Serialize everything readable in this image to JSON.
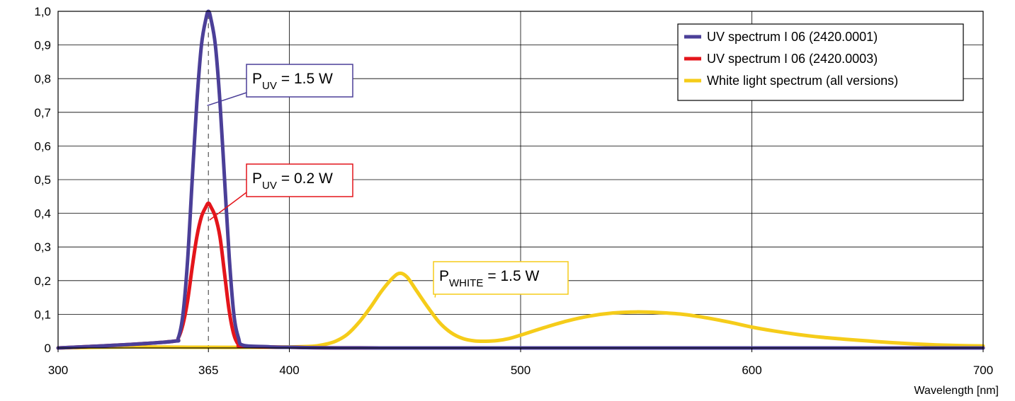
{
  "chart_data": {
    "type": "line",
    "xlabel": "Wavelength [nm]",
    "ylabel": "",
    "xlim": [
      300,
      700
    ],
    "ylim": [
      0,
      1.0
    ],
    "grid": true,
    "legend_position": "top-right",
    "x_ticks": [
      {
        "value": 300,
        "label": "300"
      },
      {
        "value": 365,
        "label": "365"
      },
      {
        "value": 400,
        "label": "400"
      },
      {
        "value": 500,
        "label": "500"
      },
      {
        "value": 600,
        "label": "600"
      },
      {
        "value": 700,
        "label": "700"
      }
    ],
    "y_ticks": [
      {
        "value": 0,
        "label": "0"
      },
      {
        "value": 0.1,
        "label": "0,1"
      },
      {
        "value": 0.2,
        "label": "0,2"
      },
      {
        "value": 0.3,
        "label": "0,3"
      },
      {
        "value": 0.4,
        "label": "0,4"
      },
      {
        "value": 0.5,
        "label": "0,5"
      },
      {
        "value": 0.6,
        "label": "0,6"
      },
      {
        "value": 0.7,
        "label": "0,7"
      },
      {
        "value": 0.8,
        "label": "0,8"
      },
      {
        "value": 0.9,
        "label": "0,9"
      },
      {
        "value": 1.0,
        "label": "1,0"
      }
    ],
    "series": [
      {
        "name": "UV spectrum I 06 (2420.0001)",
        "color": "#4b3f98",
        "points": [
          [
            300,
            0.0
          ],
          [
            330,
            0.01
          ],
          [
            350,
            0.02
          ],
          [
            352,
            0.03
          ],
          [
            354,
            0.1
          ],
          [
            356,
            0.26
          ],
          [
            358,
            0.5
          ],
          [
            360,
            0.73
          ],
          [
            362,
            0.9
          ],
          [
            364,
            0.98
          ],
          [
            365,
            1.0
          ],
          [
            366,
            0.98
          ],
          [
            368,
            0.9
          ],
          [
            370,
            0.73
          ],
          [
            372,
            0.5
          ],
          [
            374,
            0.27
          ],
          [
            376,
            0.1
          ],
          [
            378,
            0.03
          ],
          [
            380,
            0.008
          ],
          [
            390,
            0.004
          ],
          [
            400,
            0.002
          ],
          [
            450,
            0.0
          ],
          [
            700,
            0.0
          ]
        ]
      },
      {
        "name": "UV spectrum I 06 (2420.0003)",
        "color": "#e4151b",
        "points": [
          [
            300,
            0.0
          ],
          [
            330,
            0.01
          ],
          [
            350,
            0.02
          ],
          [
            352,
            0.03
          ],
          [
            354,
            0.07
          ],
          [
            356,
            0.14
          ],
          [
            358,
            0.24
          ],
          [
            360,
            0.33
          ],
          [
            362,
            0.39
          ],
          [
            364,
            0.42
          ],
          [
            365,
            0.43
          ],
          [
            366,
            0.42
          ],
          [
            368,
            0.39
          ],
          [
            370,
            0.33
          ],
          [
            372,
            0.22
          ],
          [
            374,
            0.11
          ],
          [
            376,
            0.04
          ],
          [
            378,
            0.01
          ],
          [
            380,
            0.005
          ],
          [
            400,
            0.002
          ],
          [
            450,
            0.0
          ],
          [
            700,
            0.0
          ]
        ]
      },
      {
        "name": "White light spectrum (all versions)",
        "color": "#f5cc1a",
        "points": [
          [
            300,
            0.0
          ],
          [
            330,
            0.003
          ],
          [
            360,
            0.002
          ],
          [
            380,
            0.002
          ],
          [
            400,
            0.003
          ],
          [
            410,
            0.005
          ],
          [
            415,
            0.01
          ],
          [
            420,
            0.02
          ],
          [
            425,
            0.04
          ],
          [
            430,
            0.075
          ],
          [
            435,
            0.12
          ],
          [
            440,
            0.17
          ],
          [
            445,
            0.21
          ],
          [
            448,
            0.222
          ],
          [
            451,
            0.21
          ],
          [
            455,
            0.17
          ],
          [
            460,
            0.12
          ],
          [
            465,
            0.075
          ],
          [
            470,
            0.045
          ],
          [
            475,
            0.028
          ],
          [
            480,
            0.021
          ],
          [
            485,
            0.02
          ],
          [
            490,
            0.022
          ],
          [
            495,
            0.028
          ],
          [
            500,
            0.038
          ],
          [
            510,
            0.06
          ],
          [
            520,
            0.08
          ],
          [
            530,
            0.095
          ],
          [
            540,
            0.104
          ],
          [
            550,
            0.107
          ],
          [
            560,
            0.105
          ],
          [
            570,
            0.1
          ],
          [
            580,
            0.09
          ],
          [
            590,
            0.077
          ],
          [
            600,
            0.062
          ],
          [
            610,
            0.05
          ],
          [
            620,
            0.04
          ],
          [
            630,
            0.032
          ],
          [
            640,
            0.026
          ],
          [
            650,
            0.021
          ],
          [
            660,
            0.016
          ],
          [
            670,
            0.012
          ],
          [
            680,
            0.009
          ],
          [
            690,
            0.007
          ],
          [
            700,
            0.006
          ]
        ]
      }
    ],
    "annotations": [
      {
        "name": "annotation-uv-high",
        "main": "P",
        "sub": "UV",
        "value": "= 1.5 W",
        "color": "#4b3f98",
        "anchor": [
          364.5,
          0.72
        ]
      },
      {
        "name": "annotation-uv-low",
        "main": "P",
        "sub": "UV",
        "value": "= 0.2 W",
        "color": "#e4151b",
        "anchor": [
          365.5,
          0.38
        ]
      },
      {
        "name": "annotation-white",
        "main": "P",
        "sub": "WHITE",
        "value": "= 1.5 W",
        "color": "#f5cc1a",
        "anchor": [
          463,
          0.15
        ]
      }
    ],
    "reference_line": {
      "x": 365,
      "style": "dashed"
    }
  }
}
